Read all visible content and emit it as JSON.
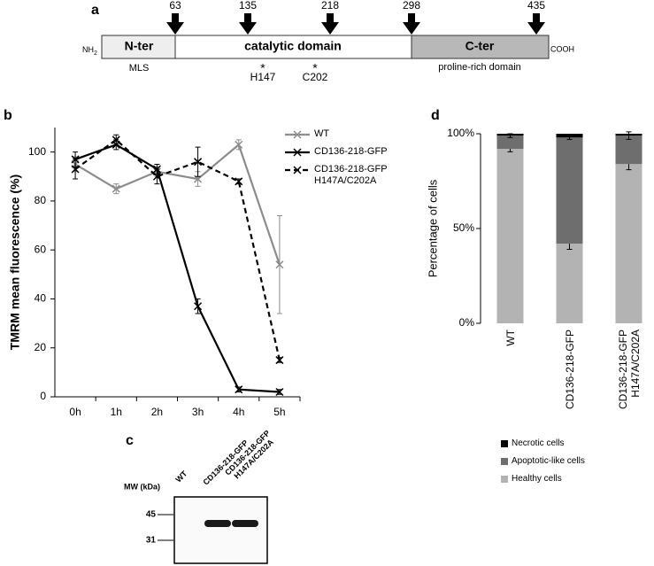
{
  "diagram": {
    "label": "a",
    "nh": "NH",
    "nh_sub": "2",
    "cooh": "COOH",
    "domains": [
      "N-ter",
      "catalytic domain",
      "C-ter"
    ],
    "positions": [
      63,
      135,
      218,
      298,
      435
    ],
    "marker": "*",
    "annotations": {
      "mls": "MLS",
      "h147": "H147",
      "c202": "C202",
      "proline": "proline-rich domain"
    }
  },
  "chart_data": [
    {
      "type": "line",
      "panel_label": "b",
      "ylabel": "TMRM mean fluorescence (%)",
      "categories": [
        "0h",
        "1h",
        "2h",
        "3h",
        "4h",
        "5h"
      ],
      "ylim": [
        0,
        110
      ],
      "yticks": [
        0,
        20,
        40,
        60,
        80,
        100
      ],
      "series": [
        {
          "name": "WT",
          "color": "#8c8c8c",
          "line_style": "solid",
          "values": [
            95,
            85,
            92,
            89,
            103,
            54
          ],
          "errors": [
            3,
            2,
            2,
            3,
            2,
            20
          ]
        },
        {
          "name": "CD136-218-GFP",
          "color": "#000000",
          "line_style": "solid",
          "values": [
            97,
            103,
            93,
            37,
            3,
            2
          ],
          "errors": [
            3,
            2,
            2,
            3,
            1,
            1
          ]
        },
        {
          "name": "CD136-218-GFP H147A/C202A",
          "color": "#000000",
          "line_style": "dashed",
          "values": [
            93,
            105,
            90,
            96,
            88,
            15
          ],
          "errors": [
            4,
            2,
            3,
            6,
            1,
            1
          ]
        }
      ]
    },
    {
      "type": "stacked_bar",
      "panel_label": "d",
      "ylabel": "Percentage of cells",
      "categories": [
        "WT",
        "CD136-218-GFP",
        "CD136-218-GFP H147A/C202A"
      ],
      "ylim": [
        0,
        100
      ],
      "yticks": [
        {
          "value": 0,
          "label": "0%"
        },
        {
          "value": 50,
          "label": "50%"
        },
        {
          "value": 100,
          "label": "100%"
        }
      ],
      "series": [
        {
          "name": "Healthy cells",
          "color": "#b3b3b3",
          "values": [
            92,
            42,
            84
          ],
          "errors": [
            1.5,
            3,
            3
          ]
        },
        {
          "name": "Apoptotic-like cells",
          "color": "#6e6e6e",
          "values": [
            7,
            56,
            15
          ],
          "errors": [
            1,
            1,
            2
          ]
        },
        {
          "name": "Necrotic cells",
          "color": "#000000",
          "values": [
            1,
            2,
            1
          ]
        }
      ]
    }
  ],
  "blot": {
    "label": "c",
    "mw_label": "MW (kDa)",
    "markers": [
      45,
      31
    ],
    "lanes": [
      "WT",
      "CD136-218-GFP",
      "CD136-218-GFP H147A/C202A"
    ]
  }
}
